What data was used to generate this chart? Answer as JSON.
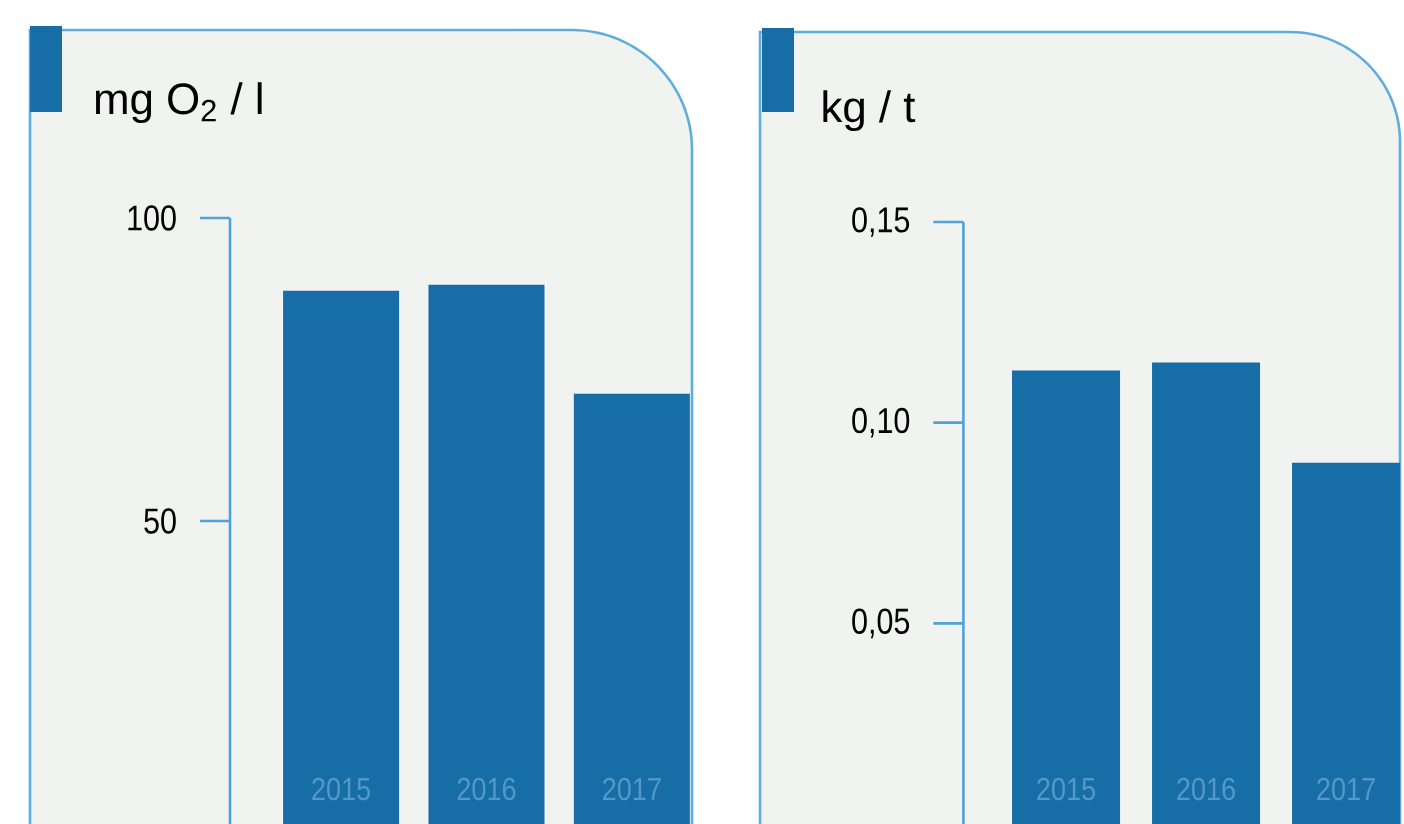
{
  "chart_data": [
    {
      "type": "bar",
      "ylabel": "mg O$_{2}$ / l",
      "categories": [
        "2015",
        "2016",
        "2017"
      ],
      "values": [
        88,
        89,
        71
      ],
      "color": "#176ea6",
      "ylim": [
        0,
        100
      ],
      "yticks": [
        50,
        100
      ]
    },
    {
      "type": "bar",
      "ylabel": "kg / t",
      "categories": [
        "2015",
        "2016",
        "2017"
      ],
      "values": [
        0.113,
        0.115,
        0.09
      ],
      "color": "#176ea6",
      "ylim": [
        0,
        0.15
      ],
      "yticks": [
        {
          "value": 0.05,
          "label": "0,05"
        },
        {
          "value": 0.1,
          "label": "0,10"
        },
        {
          "value": 0.15,
          "label": "0,15"
        }
      ]
    }
  ]
}
